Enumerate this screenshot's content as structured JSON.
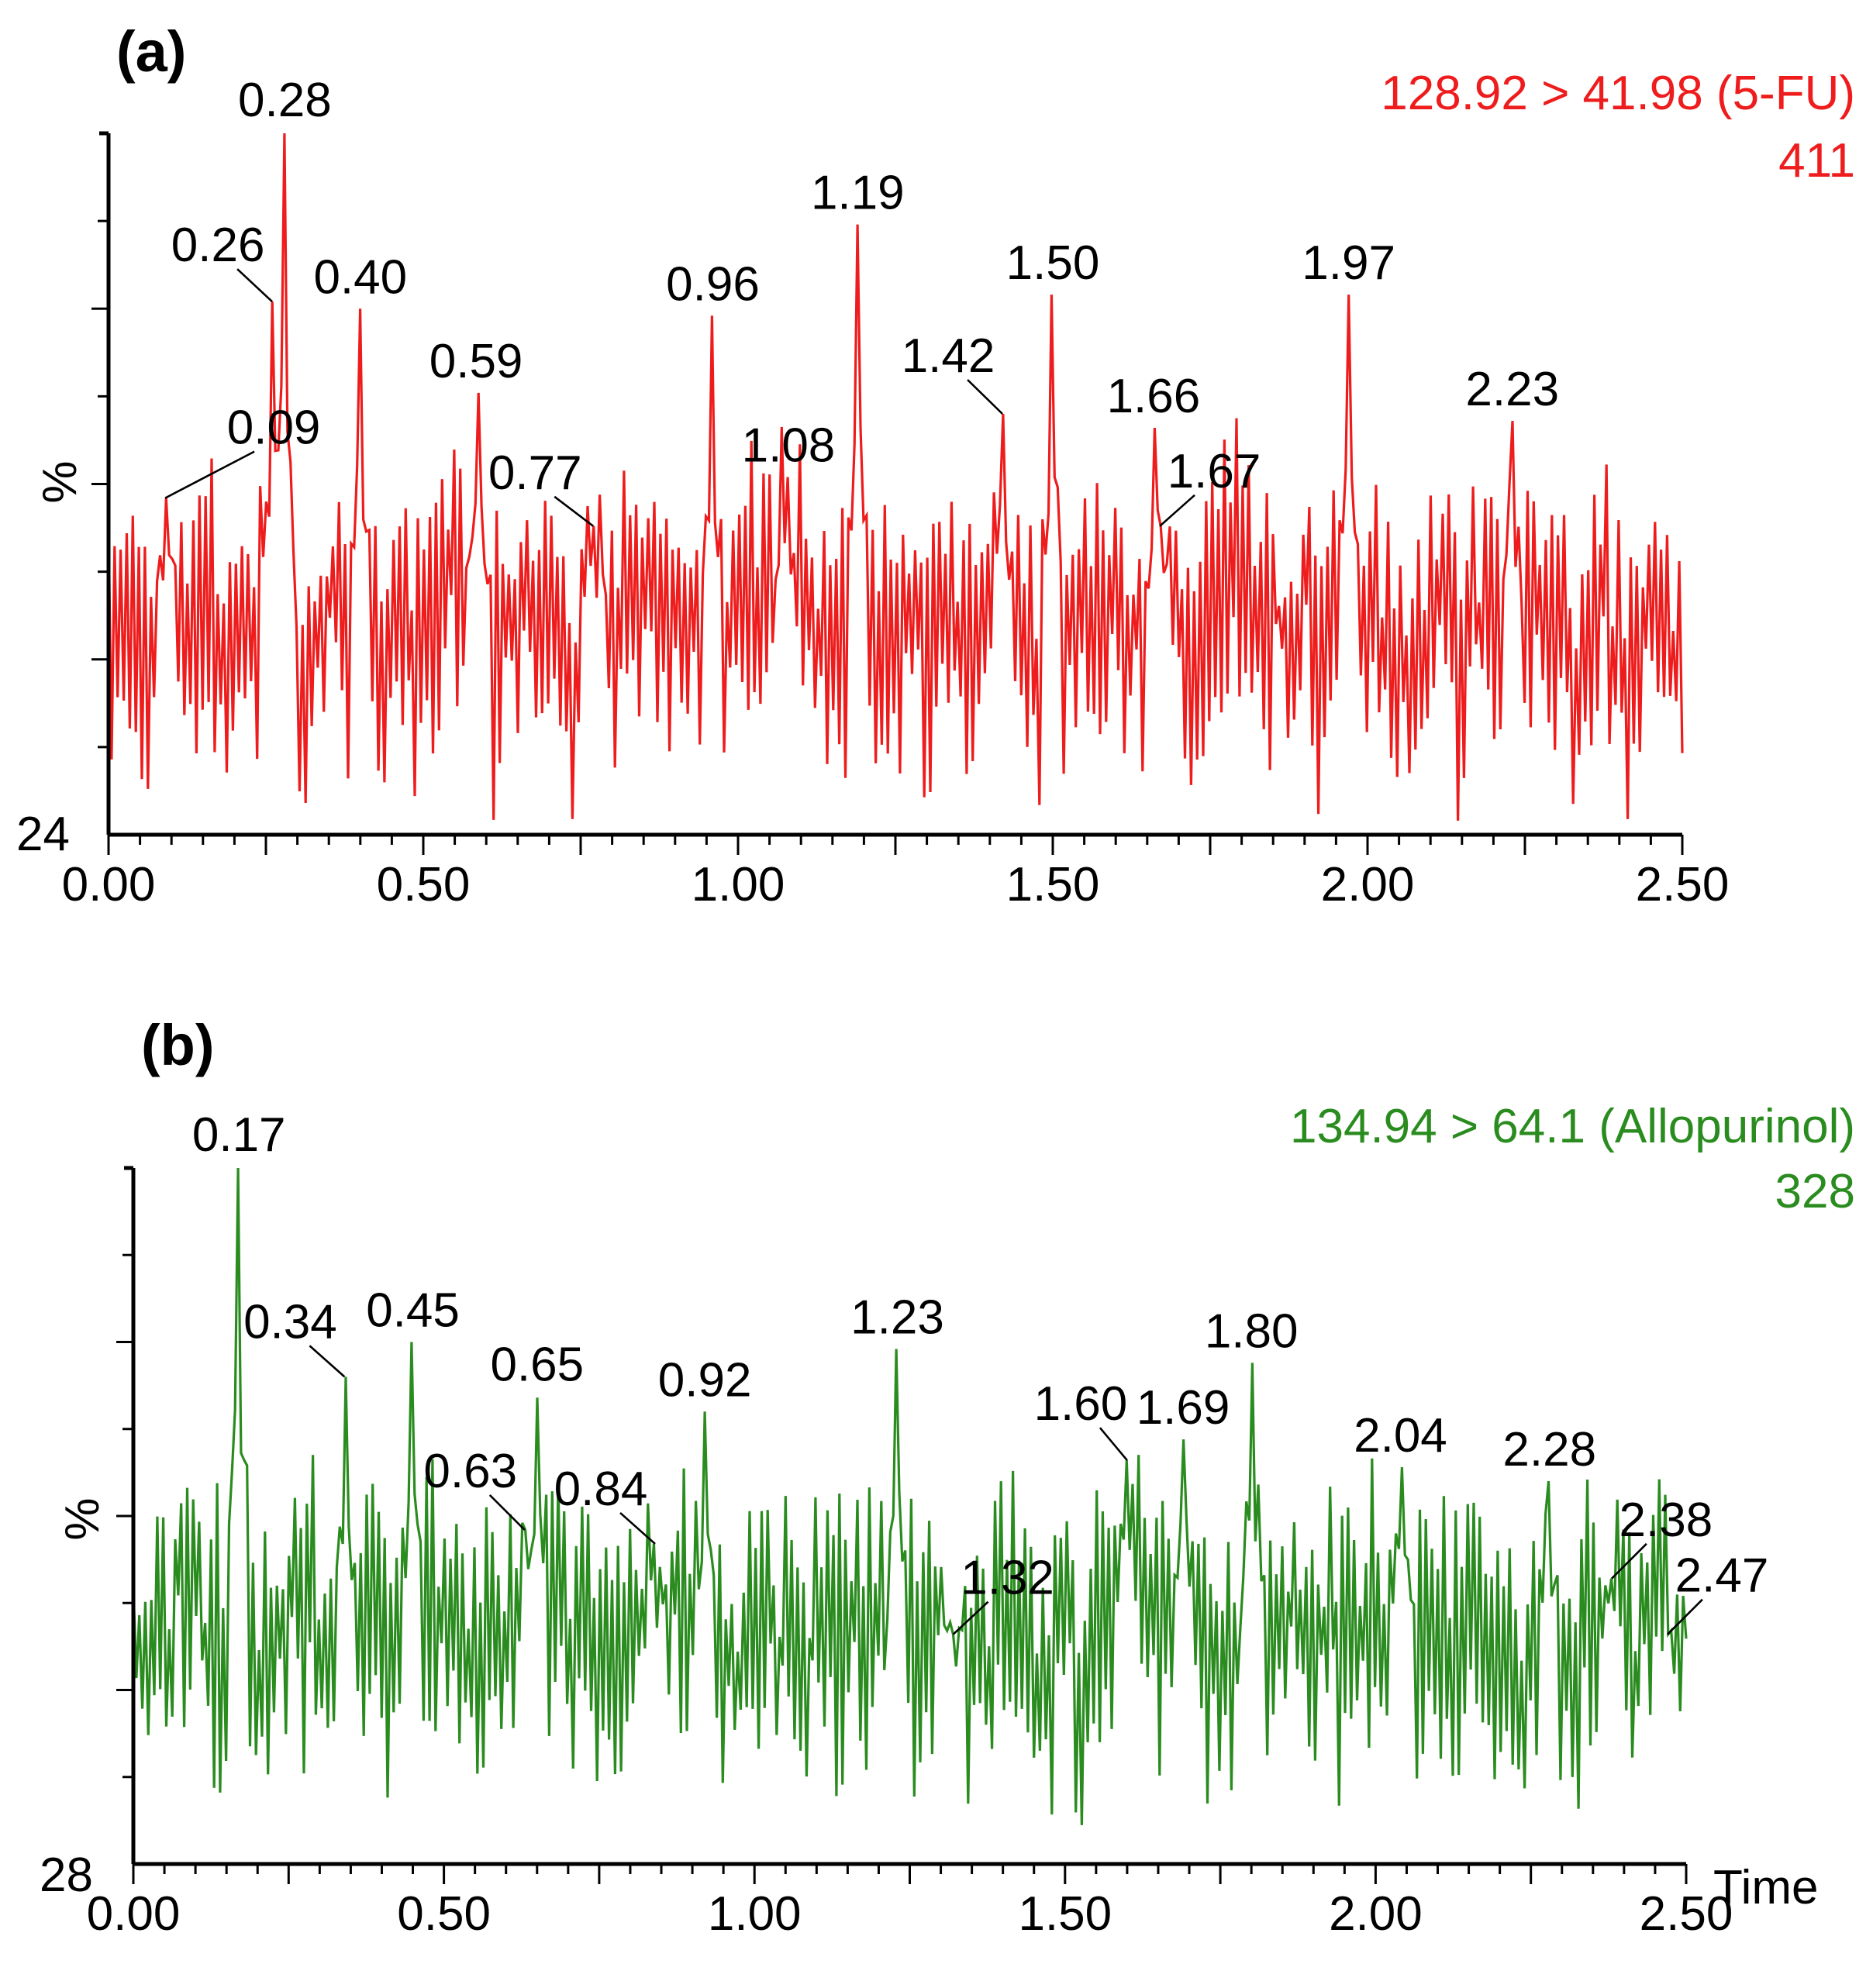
{
  "chart_data": [
    {
      "type": "line",
      "panel_label": "(a)",
      "channel": "128.92 > 41.98 (5-FU)",
      "max_intensity": "411",
      "baseline_intensity": "24",
      "ylabel": "%",
      "xlabel": "",
      "xlim": [
        0.0,
        2.5
      ],
      "ylim": [
        0,
        100
      ],
      "x_tick_labels": [
        "0.00",
        "0.50",
        "1.00",
        "1.50",
        "2.00",
        "2.50"
      ],
      "x_ticks": [
        0.0,
        0.5,
        1.0,
        1.5,
        2.0,
        2.5
      ],
      "color": "#ee1c1c",
      "seed": 7,
      "baseline_mean": 30,
      "peaks": [
        {
          "x": 0.09,
          "y": 48,
          "label": "0.09"
        },
        {
          "x": 0.26,
          "y": 76,
          "label": "0.26"
        },
        {
          "x": 0.28,
          "y": 100,
          "label": "0.28"
        },
        {
          "x": 0.4,
          "y": 75,
          "label": "0.40"
        },
        {
          "x": 0.59,
          "y": 63,
          "label": "0.59"
        },
        {
          "x": 0.77,
          "y": 44,
          "label": "0.77"
        },
        {
          "x": 0.96,
          "y": 74,
          "label": "0.96"
        },
        {
          "x": 1.08,
          "y": 51,
          "label": "1.08"
        },
        {
          "x": 1.19,
          "y": 87,
          "label": "1.19"
        },
        {
          "x": 1.42,
          "y": 60,
          "label": "1.42"
        },
        {
          "x": 1.5,
          "y": 77,
          "label": "1.50"
        },
        {
          "x": 1.66,
          "y": 58,
          "label": "1.66"
        },
        {
          "x": 1.67,
          "y": 44,
          "label": "1.67"
        },
        {
          "x": 1.97,
          "y": 77,
          "label": "1.97"
        },
        {
          "x": 2.23,
          "y": 59,
          "label": "2.23"
        }
      ]
    },
    {
      "type": "line",
      "panel_label": "(b)",
      "channel": "134.94 > 64.1 (Allopurinol)",
      "max_intensity": "328",
      "baseline_intensity": "28",
      "ylabel": "%",
      "xlabel": "Time",
      "xlim": [
        0.0,
        2.5
      ],
      "ylim": [
        0,
        100
      ],
      "x_tick_labels": [
        "0.00",
        "0.50",
        "1.00",
        "1.50",
        "2.00",
        "2.50"
      ],
      "x_ticks": [
        0.0,
        0.5,
        1.0,
        1.5,
        2.0,
        2.5
      ],
      "color": "#2a8c1f",
      "seed": 13,
      "baseline_mean": 32,
      "peaks": [
        {
          "x": 0.17,
          "y": 100,
          "label": "0.17"
        },
        {
          "x": 0.34,
          "y": 70,
          "label": "0.34"
        },
        {
          "x": 0.45,
          "y": 75,
          "label": "0.45"
        },
        {
          "x": 0.63,
          "y": 48,
          "label": "0.63"
        },
        {
          "x": 0.65,
          "y": 67,
          "label": "0.65"
        },
        {
          "x": 0.84,
          "y": 46,
          "label": "0.84"
        },
        {
          "x": 0.92,
          "y": 65,
          "label": "0.92"
        },
        {
          "x": 1.23,
          "y": 74,
          "label": "1.23"
        },
        {
          "x": 1.32,
          "y": 33,
          "label": "1.32"
        },
        {
          "x": 1.6,
          "y": 58,
          "label": "1.60"
        },
        {
          "x": 1.69,
          "y": 61,
          "label": "1.69"
        },
        {
          "x": 1.8,
          "y": 72,
          "label": "1.80"
        },
        {
          "x": 2.04,
          "y": 57,
          "label": "2.04"
        },
        {
          "x": 2.28,
          "y": 55,
          "label": "2.28"
        },
        {
          "x": 2.38,
          "y": 41,
          "label": "2.38"
        },
        {
          "x": 2.47,
          "y": 33,
          "label": "2.47"
        }
      ]
    }
  ]
}
